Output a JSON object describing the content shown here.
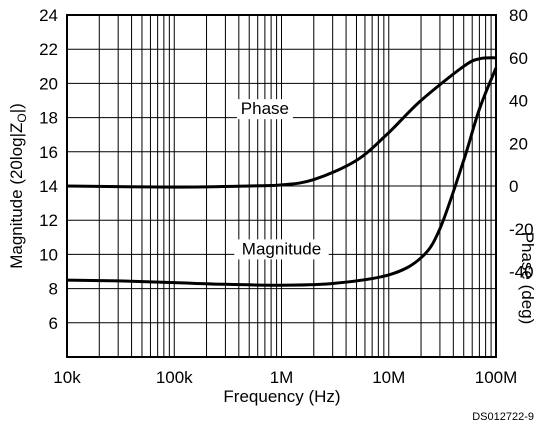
{
  "chart_data": {
    "type": "line",
    "xlabel": "Frequency (Hz)",
    "ylabel": "Magnitude (20log|Z",
    "ylabel_subscript": "O",
    "ylabel_suffix": "|)",
    "y2label": "Phase (deg)",
    "x_scale": "log",
    "xlim": [
      10000,
      100000000
    ],
    "ylim": [
      4,
      24
    ],
    "y2lim": [
      -80,
      80
    ],
    "grid": true,
    "x_ticks": [
      {
        "value": 10000,
        "label": "10k"
      },
      {
        "value": 100000,
        "label": "100k"
      },
      {
        "value": 1000000,
        "label": "1M"
      },
      {
        "value": 10000000,
        "label": "10M"
      },
      {
        "value": 100000000,
        "label": "100M"
      }
    ],
    "y_ticks": [
      {
        "value": 6,
        "label": "6"
      },
      {
        "value": 8,
        "label": "8"
      },
      {
        "value": 10,
        "label": "10"
      },
      {
        "value": 12,
        "label": "12"
      },
      {
        "value": 14,
        "label": "14"
      },
      {
        "value": 16,
        "label": "16"
      },
      {
        "value": 18,
        "label": "18"
      },
      {
        "value": 20,
        "label": "20"
      },
      {
        "value": 22,
        "label": "22"
      },
      {
        "value": 24,
        "label": "24"
      }
    ],
    "y2_ticks": [
      {
        "value": -40,
        "label": "-40"
      },
      {
        "value": -20,
        "label": "-20"
      },
      {
        "value": 0,
        "label": "0"
      },
      {
        "value": 20,
        "label": "20"
      },
      {
        "value": 40,
        "label": "40"
      },
      {
        "value": 60,
        "label": "60"
      },
      {
        "value": 80,
        "label": "80"
      }
    ],
    "series": [
      {
        "name": "Magnitude",
        "axis": "left",
        "x": [
          10000,
          30000,
          100000,
          300000,
          1000000,
          3000000,
          10000000,
          20000000,
          30000000,
          50000000,
          70000000,
          100000000
        ],
        "y": [
          8.5,
          8.45,
          8.35,
          8.25,
          8.2,
          8.3,
          8.8,
          9.8,
          11.5,
          15.5,
          18.5,
          20.9
        ]
      },
      {
        "name": "Phase",
        "axis": "right",
        "x": [
          10000,
          100000,
          500000,
          1000000,
          2000000,
          5000000,
          10000000,
          20000000,
          50000000,
          70000000,
          100000000
        ],
        "y": [
          0,
          -0.5,
          0,
          0.5,
          3,
          12,
          25,
          40,
          56,
          59.5,
          60
        ]
      }
    ],
    "labels": [
      {
        "text": "Phase",
        "series": "Phase",
        "x": 700000,
        "y": 18.2
      },
      {
        "text": "Magnitude",
        "series": "Magnitude",
        "x": 1000000,
        "y": 10
      }
    ]
  },
  "figure_id": "DS012722-9",
  "colors": {
    "line": "#000000",
    "grid": "#000000",
    "background": "#ffffff"
  }
}
